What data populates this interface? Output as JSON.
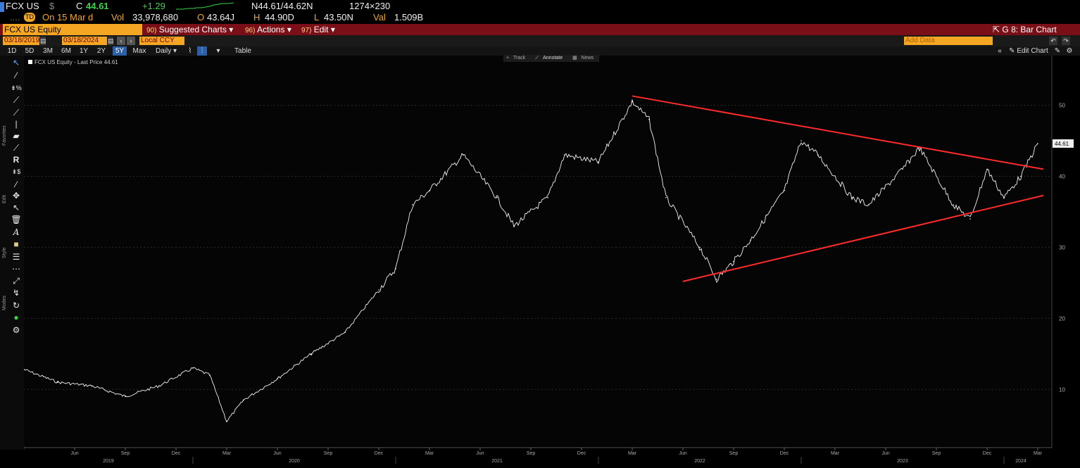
{
  "quote": {
    "ticker": "FCX US",
    "currency_sym": "$",
    "close_prefix": "C",
    "last_price": "44.61",
    "change": "+1.29",
    "bid_ask": "N44.61/44.62N",
    "size": "1274×230",
    "ellipsis": "....",
    "td_badge": "TD",
    "on_date": "On 15 Mar d",
    "vol_label": "Vol",
    "vol": "33,978,680",
    "open_label": "O",
    "open": "43.64J",
    "high_label": "H",
    "high": "44.90D",
    "low_label": "L",
    "low": "43.50N",
    "val_label": "Val",
    "val": "1.509B"
  },
  "titlebar": {
    "security": "FCX US Equity",
    "suggested_num": "90)",
    "suggested": "Suggested Charts",
    "actions_num": "96)",
    "actions": "Actions",
    "edit_num": "97)",
    "edit": "Edit",
    "function_title": "G 8: Bar Chart"
  },
  "datebar": {
    "start_date": "03/18/2019",
    "end_date": "03/18/2024",
    "currency": "Local CCY",
    "add_data_placeholder": "Add Data",
    "edit_chart": "Edit Chart"
  },
  "periods": [
    "1D",
    "5D",
    "3M",
    "6M",
    "1Y",
    "2Y",
    "5Y",
    "Max"
  ],
  "selected_period": "5Y",
  "frequency": "Daily",
  "table_label": "Table",
  "chart_tabs": [
    "Track",
    "Annotate",
    "News"
  ],
  "toolbar_sections": [
    "Favorites",
    "Edit",
    "Style",
    "Modes"
  ],
  "legend": "FCX US Equity - Last Price 44.61",
  "colors": {
    "accent": "#f5a623",
    "titlebar": "#7b0f17",
    "trendline": "#ff2a2a",
    "price": "#ffffff",
    "positive": "#3ad34a"
  },
  "chart_data": {
    "type": "line",
    "title": "FCX US Equity - Last Price 44.61",
    "ylim": [
      2,
      56
    ],
    "yticks": [
      10,
      20,
      30,
      40,
      50
    ],
    "last_value_label": "44.61",
    "month_labels": [
      "Jun",
      "Sep",
      "Dec",
      "Mar",
      "Jun",
      "Sep",
      "Dec",
      "Mar",
      "Jun",
      "Sep",
      "Dec",
      "Mar",
      "Jun",
      "Sep",
      "Dec",
      "Mar",
      "Jun",
      "Sep",
      "Dec",
      "Mar"
    ],
    "year_labels": [
      "2019",
      "2020",
      "2021",
      "2022",
      "2023",
      "2024"
    ],
    "series": [
      {
        "name": "Last Price",
        "x": [
          "2019-03",
          "2019-05",
          "2019-07",
          "2019-09",
          "2019-11",
          "2020-01",
          "2020-02",
          "2020-03",
          "2020-04",
          "2020-06",
          "2020-08",
          "2020-10",
          "2020-12",
          "2021-01",
          "2021-02",
          "2021-03",
          "2021-05",
          "2021-07",
          "2021-08",
          "2021-10",
          "2021-11",
          "2022-01",
          "2022-03",
          "2022-04",
          "2022-05",
          "2022-07",
          "2022-08",
          "2022-09",
          "2022-10",
          "2022-12",
          "2023-01",
          "2023-02",
          "2023-04",
          "2023-05",
          "2023-07",
          "2023-08",
          "2023-10",
          "2023-11",
          "2023-12",
          "2024-01",
          "2024-02",
          "2024-03"
        ],
        "values": [
          12.8,
          11,
          10.5,
          9,
          10.5,
          13,
          12,
          5.5,
          8.5,
          11.5,
          15,
          18,
          24,
          27,
          36,
          38,
          43,
          37,
          33,
          37,
          43,
          42,
          50.5,
          48,
          37,
          30,
          25.5,
          28,
          31,
          38,
          45,
          43,
          37,
          36,
          41,
          44,
          36,
          34,
          41,
          37,
          40,
          44.61
        ]
      }
    ],
    "trendlines": [
      {
        "name": "resistance",
        "from": {
          "x": "2022-03",
          "y": 51.3
        },
        "to": {
          "x": "2024-03",
          "y": 41.0
        }
      },
      {
        "name": "support",
        "from": {
          "x": "2022-06",
          "y": 25.2
        },
        "to": {
          "x": "2024-03",
          "y": 37.3
        }
      }
    ]
  }
}
